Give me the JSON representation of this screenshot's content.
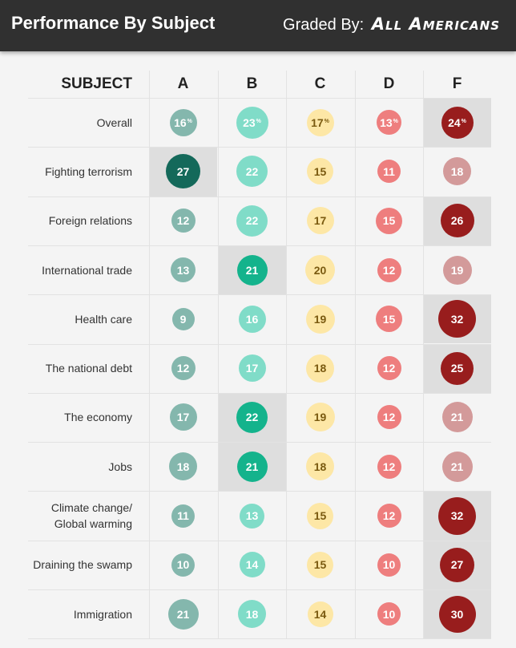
{
  "header": {
    "title": "Performance By Subject",
    "graded_by_label": "Graded By:",
    "graded_by_brand": "All Americans"
  },
  "chart_data": {
    "type": "table",
    "title": "Performance By Subject",
    "subject_header": "SUBJECT",
    "grades": [
      "A",
      "B",
      "C",
      "D",
      "F"
    ],
    "grade_colors": {
      "A": "#84b7ad",
      "B": "#80dcc8",
      "C": "#fde7a6",
      "D": "#ee7e7e",
      "F": "#d39a9a"
    },
    "highlight_colors": {
      "A": "#14695a",
      "B": "#14b38c",
      "F": "#981d1d"
    },
    "overall_unit": "%",
    "rows": [
      {
        "subject": "Overall",
        "values": [
          16,
          23,
          17,
          13,
          24
        ],
        "highlight": 4,
        "percent": true
      },
      {
        "subject": "Fighting terrorism",
        "values": [
          27,
          22,
          15,
          11,
          18
        ],
        "highlight": 0
      },
      {
        "subject": "Foreign relations",
        "values": [
          12,
          22,
          17,
          15,
          26
        ],
        "highlight": 4
      },
      {
        "subject": "International trade",
        "values": [
          13,
          21,
          20,
          12,
          19
        ],
        "highlight": 1
      },
      {
        "subject": "Health care",
        "values": [
          9,
          16,
          19,
          15,
          32
        ],
        "highlight": 4
      },
      {
        "subject": "The national debt",
        "values": [
          12,
          17,
          18,
          12,
          25
        ],
        "highlight": 4
      },
      {
        "subject": "The economy",
        "values": [
          17,
          22,
          19,
          12,
          21
        ],
        "highlight": 1
      },
      {
        "subject": "Jobs",
        "values": [
          18,
          21,
          18,
          12,
          21
        ],
        "highlight": 1
      },
      {
        "subject": "Climate change/\nGlobal warming",
        "values": [
          11,
          13,
          15,
          12,
          32
        ],
        "highlight": 4
      },
      {
        "subject": "Draining the swamp",
        "values": [
          10,
          14,
          15,
          10,
          27
        ],
        "highlight": 4
      },
      {
        "subject": "Immigration",
        "values": [
          21,
          18,
          14,
          10,
          30
        ],
        "highlight": 4
      }
    ]
  }
}
